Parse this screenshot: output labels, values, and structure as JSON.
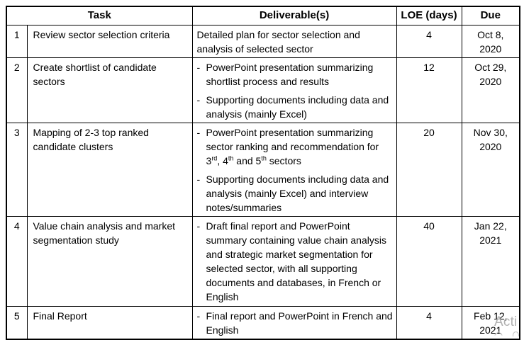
{
  "table": {
    "headers": {
      "task": "Task",
      "deliverables": "Deliverable(s)",
      "loe": "LOE (days)",
      "due": "Due"
    },
    "rows": [
      {
        "num": "1",
        "task": "Review sector selection criteria",
        "bulleted": false,
        "deliverables": [
          "Detailed plan for sector selection and analysis of selected sector"
        ],
        "loe": "4",
        "due": "Oct 8,\n2020"
      },
      {
        "num": "2",
        "task": "Create shortlist of candidate sectors",
        "bulleted": true,
        "deliverables": [
          "PowerPoint presentation summarizing shortlist process and results",
          "Supporting documents including data and analysis (mainly Excel)"
        ],
        "loe": "12",
        "due": "Oct 29,\n2020"
      },
      {
        "num": "3",
        "task": "Mapping of 2-3 top ranked candidate clusters",
        "bulleted": true,
        "deliverables": [
          [
            {
              "t": "PowerPoint presentation summarizing sector ranking and recommendation for 3"
            },
            {
              "sup": "rd"
            },
            {
              "t": ", 4"
            },
            {
              "sup": "th"
            },
            {
              "t": " and 5"
            },
            {
              "sup": "th"
            },
            {
              "t": " sectors"
            }
          ],
          "Supporting documents including data and analysis (mainly Excel) and interview notes/summaries"
        ],
        "loe": "20",
        "due": "Nov 30,\n2020"
      },
      {
        "num": "4",
        "task": "Value chain analysis and market segmentation study",
        "bulleted": true,
        "deliverables": [
          "Draft final report and PowerPoint summary containing value chain analysis and strategic market segmentation for selected sector, with all supporting documents and databases, in French or English"
        ],
        "loe": "40",
        "due": "Jan 22,\n2021"
      },
      {
        "num": "5",
        "task": "Final Report",
        "bulleted": true,
        "deliverables": [
          "Final report and PowerPoint in French and English"
        ],
        "loe": "4",
        "due": "Feb 12,\n2021"
      }
    ]
  },
  "watermark": {
    "text": "Acti",
    "color": "#b2b2b2"
  }
}
